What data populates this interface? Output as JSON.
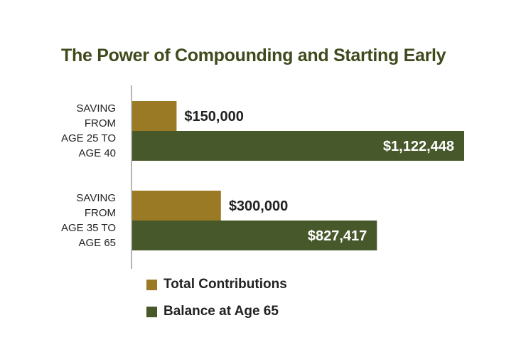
{
  "colors": {
    "contributions": "#9a7a24",
    "balance": "#47582a",
    "title": "#3f4a1c",
    "axis": "#b5b5b5",
    "text": "#222222",
    "inside_label": "#ffffff"
  },
  "chart_data": {
    "type": "bar",
    "orientation": "horizontal",
    "title": "The Power of Compounding and Starting Early",
    "xlabel": "",
    "ylabel": "",
    "grid": false,
    "legend_position": "bottom-left",
    "categories": [
      [
        "SAVING",
        "FROM",
        "AGE 25 TO",
        "AGE 40"
      ],
      [
        "SAVING",
        "FROM",
        "AGE 35 TO",
        "AGE 65"
      ]
    ],
    "series": [
      {
        "name": "Total Contributions",
        "values": [
          150000,
          300000
        ],
        "labels": [
          "$150,000",
          "$300,000"
        ],
        "color": "#9a7a24"
      },
      {
        "name": "Balance at Age 65",
        "values": [
          1122448,
          827417
        ],
        "labels": [
          "$1,122,448",
          "$827,417"
        ],
        "color": "#47582a"
      }
    ]
  }
}
